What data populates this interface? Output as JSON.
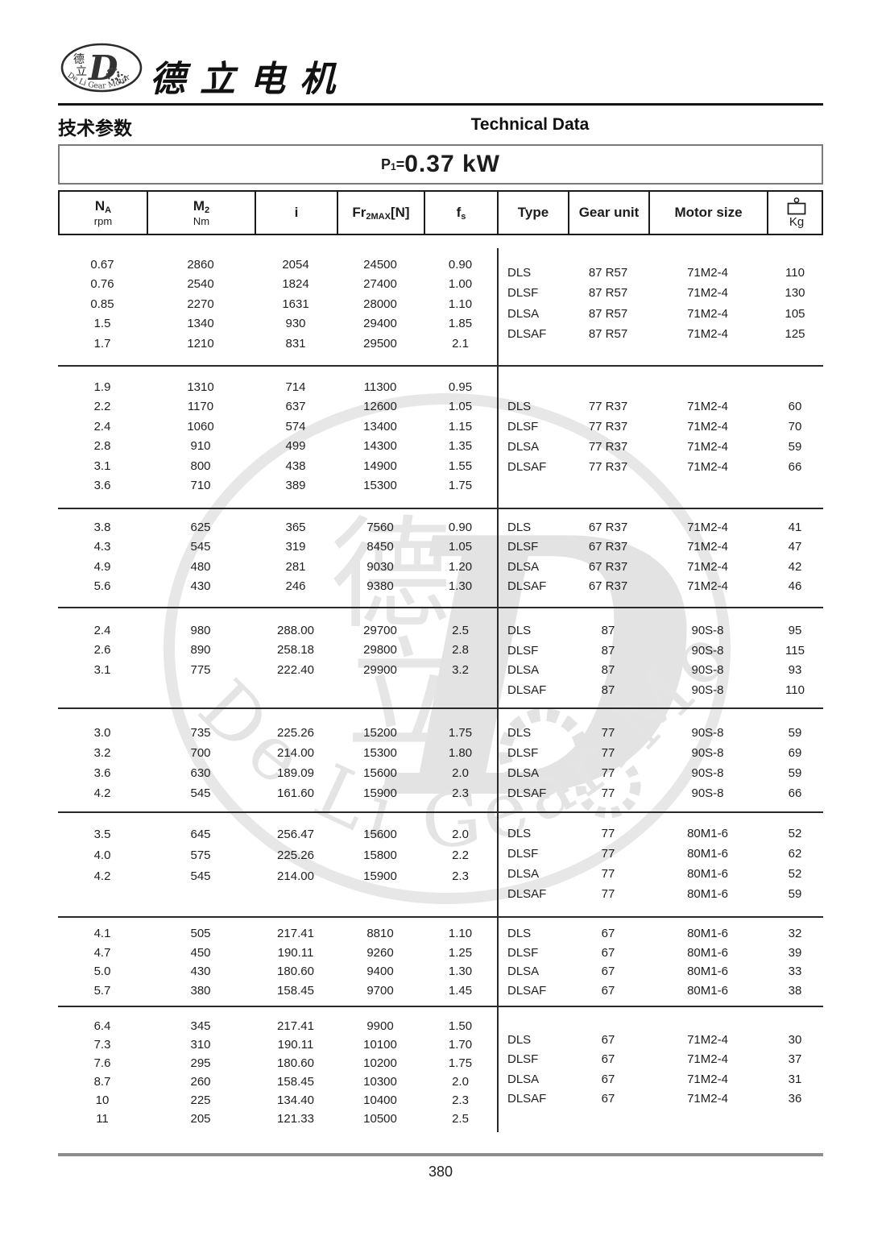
{
  "brand": {
    "name_cn": "德立电机",
    "logo_cn": "德立",
    "logo_en": "De Li Gear Motor"
  },
  "section": {
    "title_cn": "技术参数",
    "title_en": "Technical Data"
  },
  "power": {
    "symbol": "P",
    "symbol_sub": "1",
    "equals": "=",
    "value": "0.37 kW"
  },
  "columns": [
    {
      "main": "N",
      "sub": "A",
      "unit": "rpm"
    },
    {
      "main": "M",
      "sub": "2",
      "unit": "Nm"
    },
    {
      "main": "i"
    },
    {
      "main": "Fr",
      "sub": "2MAX",
      "tail": "[N]"
    },
    {
      "main": "f",
      "sub": "s"
    },
    {
      "label": "Type"
    },
    {
      "label": "Gear unit"
    },
    {
      "label": "Motor size"
    },
    {
      "icon": "weight-icon",
      "unit": "Kg"
    }
  ],
  "groups": [
    {
      "left": [
        [
          "0.67",
          "2860",
          "2054",
          "24500",
          "0.90"
        ],
        [
          "0.76",
          "2540",
          "1824",
          "27400",
          "1.00"
        ],
        [
          "0.85",
          "2270",
          "1631",
          "28000",
          "1.10"
        ],
        [
          "1.5",
          "1340",
          "930",
          "29400",
          "1.85"
        ],
        [
          "1.7",
          "1210",
          "831",
          "29500",
          "2.1"
        ]
      ],
      "right": [
        [
          "DLS",
          "87 R57",
          "71M2-4",
          "110"
        ],
        [
          "DLSF",
          "87 R57",
          "71M2-4",
          "130"
        ],
        [
          "DLSA",
          "87 R57",
          "71M2-4",
          "105"
        ],
        [
          "DLSAF",
          "87 R57",
          "71M2-4",
          "125"
        ]
      ]
    },
    {
      "left": [
        [
          "1.9",
          "1310",
          "714",
          "11300",
          "0.95"
        ],
        [
          "2.2",
          "1170",
          "637",
          "12600",
          "1.05"
        ],
        [
          "2.4",
          "1060",
          "574",
          "13400",
          "1.15"
        ],
        [
          "2.8",
          "910",
          "499",
          "14300",
          "1.35"
        ],
        [
          "3.1",
          "800",
          "438",
          "14900",
          "1.55"
        ],
        [
          "3.6",
          "710",
          "389",
          "15300",
          "1.75"
        ]
      ],
      "right": [
        [
          "DLS",
          "77 R37",
          "71M2-4",
          "60"
        ],
        [
          "DLSF",
          "77 R37",
          "71M2-4",
          "70"
        ],
        [
          "DLSA",
          "77 R37",
          "71M2-4",
          "59"
        ],
        [
          "DLSAF",
          "77 R37",
          "71M2-4",
          "66"
        ]
      ]
    },
    {
      "left": [
        [
          "3.8",
          "625",
          "365",
          "7560",
          "0.90"
        ],
        [
          "4.3",
          "545",
          "319",
          "8450",
          "1.05"
        ],
        [
          "4.9",
          "480",
          "281",
          "9030",
          "1.20"
        ],
        [
          "5.6",
          "430",
          "246",
          "9380",
          "1.30"
        ]
      ],
      "right": [
        [
          "DLS",
          "67 R37",
          "71M2-4",
          "41"
        ],
        [
          "DLSF",
          "67 R37",
          "71M2-4",
          "47"
        ],
        [
          "DLSA",
          "67 R37",
          "71M2-4",
          "42"
        ],
        [
          "DLSAF",
          "67 R37",
          "71M2-4",
          "46"
        ]
      ]
    },
    {
      "left": [
        [
          "2.4",
          "980",
          "288.00",
          "29700",
          "2.5"
        ],
        [
          "2.6",
          "890",
          "258.18",
          "29800",
          "2.8"
        ],
        [
          "3.1",
          "775",
          "222.40",
          "29900",
          "3.2"
        ]
      ],
      "right": [
        [
          "DLS",
          "87",
          "90S-8",
          "95"
        ],
        [
          "DLSF",
          "87",
          "90S-8",
          "115"
        ],
        [
          "DLSA",
          "87",
          "90S-8",
          "93"
        ],
        [
          "DLSAF",
          "87",
          "90S-8",
          "110"
        ]
      ]
    },
    {
      "left": [
        [
          "3.0",
          "735",
          "225.26",
          "15200",
          "1.75"
        ],
        [
          "3.2",
          "700",
          "214.00",
          "15300",
          "1.80"
        ],
        [
          "3.6",
          "630",
          "189.09",
          "15600",
          "2.0"
        ],
        [
          "4.2",
          "545",
          "161.60",
          "15900",
          "2.3"
        ]
      ],
      "right": [
        [
          "DLS",
          "77",
          "90S-8",
          "59"
        ],
        [
          "DLSF",
          "77",
          "90S-8",
          "69"
        ],
        [
          "DLSA",
          "77",
          "90S-8",
          "59"
        ],
        [
          "DLSAF",
          "77",
          "90S-8",
          "66"
        ]
      ]
    },
    {
      "left": [
        [
          "3.5",
          "645",
          "256.47",
          "15600",
          "2.0"
        ],
        [
          "4.0",
          "575",
          "225.26",
          "15800",
          "2.2"
        ],
        [
          "4.2",
          "545",
          "214.00",
          "15900",
          "2.3"
        ]
      ],
      "right": [
        [
          "DLS",
          "77",
          "80M1-6",
          "52"
        ],
        [
          "DLSF",
          "77",
          "80M1-6",
          "62"
        ],
        [
          "DLSA",
          "77",
          "80M1-6",
          "52"
        ],
        [
          "DLSAF",
          "77",
          "80M1-6",
          "59"
        ]
      ]
    },
    {
      "left": [
        [
          "4.1",
          "505",
          "217.41",
          "8810",
          "1.10"
        ],
        [
          "4.7",
          "450",
          "190.11",
          "9260",
          "1.25"
        ],
        [
          "5.0",
          "430",
          "180.60",
          "9400",
          "1.30"
        ],
        [
          "5.7",
          "380",
          "158.45",
          "9700",
          "1.45"
        ]
      ],
      "right": [
        [
          "DLS",
          "67",
          "80M1-6",
          "32"
        ],
        [
          "DLSF",
          "67",
          "80M1-6",
          "39"
        ],
        [
          "DLSA",
          "67",
          "80M1-6",
          "33"
        ],
        [
          "DLSAF",
          "67",
          "80M1-6",
          "38"
        ]
      ]
    },
    {
      "left": [
        [
          "6.4",
          "345",
          "217.41",
          "9900",
          "1.50"
        ],
        [
          "7.3",
          "310",
          "190.11",
          "10100",
          "1.70"
        ],
        [
          "7.6",
          "295",
          "180.60",
          "10200",
          "1.75"
        ],
        [
          "8.7",
          "260",
          "158.45",
          "10300",
          "2.0"
        ],
        [
          "10",
          "225",
          "134.40",
          "10400",
          "2.3"
        ],
        [
          "11",
          "205",
          "121.33",
          "10500",
          "2.5"
        ]
      ],
      "right": [
        [
          "DLS",
          "67",
          "71M2-4",
          "30"
        ],
        [
          "DLSF",
          "67",
          "71M2-4",
          "37"
        ],
        [
          "DLSA",
          "67",
          "71M2-4",
          "31"
        ],
        [
          "DLSAF",
          "67",
          "71M2-4",
          "36"
        ]
      ]
    }
  ],
  "footer": {
    "page": "380"
  }
}
